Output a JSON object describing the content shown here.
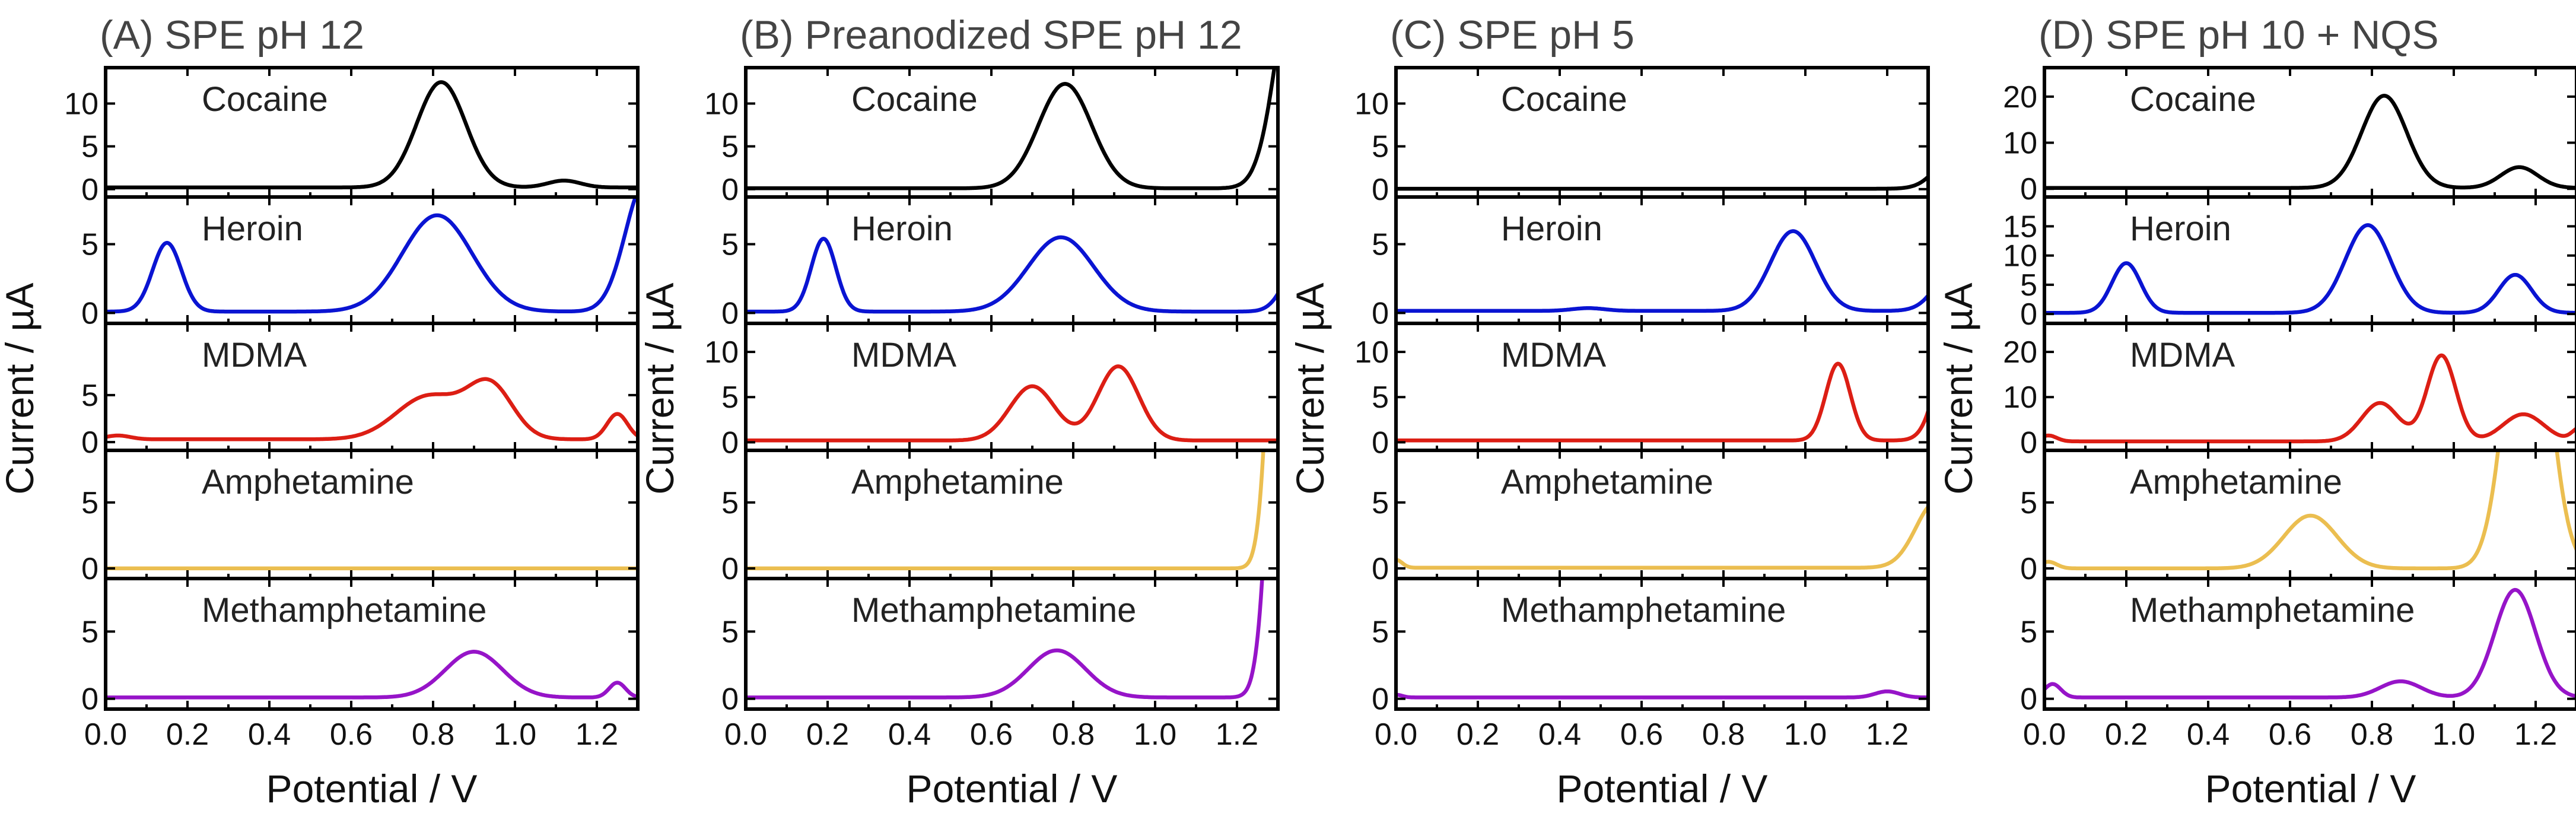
{
  "chart_data": {
    "type": "line",
    "xlabel": "Potential / V",
    "ylabel": "Current / µA",
    "xlim": [
      0,
      1.3
    ],
    "x_ticks": [
      0.0,
      0.2,
      0.4,
      0.6,
      0.8,
      1.0,
      1.2
    ],
    "x_tick_labels": [
      "0.0",
      "0.2",
      "0.4",
      "0.6",
      "0.8",
      "1.0",
      "1.2"
    ],
    "analytes": [
      "Cocaine",
      "Heroin",
      "MDMA",
      "Amphetamine",
      "Methamphetamine"
    ],
    "colors": {
      "Cocaine": "#000000",
      "Heroin": "#0a14d2",
      "MDMA": "#dc1e14",
      "Amphetamine": "#ebbe50",
      "Methamphetamine": "#9614c8"
    },
    "panels": [
      {
        "title": "(A) SPE pH 12",
        "subplots": [
          {
            "analyte": "Cocaine",
            "ylim": [
              -0.5,
              13.5
            ],
            "y_ticks": [
              0,
              5,
              10
            ],
            "baseline": 0.2,
            "peaks": [
              {
                "x": 0.82,
                "h": 12.3,
                "w": 0.06
              },
              {
                "x": 1.12,
                "h": 0.8,
                "w": 0.04
              }
            ]
          },
          {
            "analyte": "Heroin",
            "ylim": [
              -0.5,
              8.0
            ],
            "y_ticks": [
              0,
              5
            ],
            "baseline": 0.1,
            "peaks": [
              {
                "x": 0.15,
                "h": 5.0,
                "w": 0.035
              },
              {
                "x": 0.81,
                "h": 7.0,
                "w": 0.085
              },
              {
                "x": 1.32,
                "h": 9.5,
                "w": 0.05
              }
            ]
          },
          {
            "analyte": "MDMA",
            "ylim": [
              -0.5,
              12.0
            ],
            "y_ticks": [
              0,
              5
            ],
            "baseline": 0.3,
            "peaks": [
              {
                "x": 0.03,
                "h": 0.4,
                "w": 0.03
              },
              {
                "x": 0.79,
                "h": 4.6,
                "w": 0.08
              },
              {
                "x": 0.94,
                "h": 5.5,
                "w": 0.055
              },
              {
                "x": 1.25,
                "h": 2.7,
                "w": 0.025
              }
            ]
          },
          {
            "analyte": "Amphetamine",
            "ylim": [
              -0.5,
              8.5
            ],
            "y_ticks": [
              0,
              5
            ],
            "baseline": 0.0,
            "peaks": []
          },
          {
            "analyte": "Methamphetamine",
            "ylim": [
              -0.5,
              8.5
            ],
            "y_ticks": [
              0,
              5
            ],
            "baseline": 0.1,
            "peaks": [
              {
                "x": 0.9,
                "h": 3.4,
                "w": 0.07
              },
              {
                "x": 1.25,
                "h": 1.1,
                "w": 0.02
              }
            ]
          }
        ]
      },
      {
        "title": "(B) Preanodized SPE pH 12",
        "subplots": [
          {
            "analyte": "Cocaine",
            "ylim": [
              -0.5,
              13.5
            ],
            "y_ticks": [
              0,
              5,
              10
            ],
            "baseline": 0.1,
            "peaks": [
              {
                "x": 0.78,
                "h": 12.2,
                "w": 0.065
              },
              {
                "x": 1.35,
                "h": 28.0,
                "w": 0.05
              }
            ]
          },
          {
            "analyte": "Heroin",
            "ylim": [
              -0.5,
              8.0
            ],
            "y_ticks": [
              0,
              5
            ],
            "baseline": 0.1,
            "peaks": [
              {
                "x": 0.19,
                "h": 5.3,
                "w": 0.03
              },
              {
                "x": 0.77,
                "h": 5.4,
                "w": 0.08
              },
              {
                "x": 1.36,
                "h": 4.0,
                "w": 0.04
              }
            ]
          },
          {
            "analyte": "MDMA",
            "ylim": [
              -0.5,
              12.5
            ],
            "y_ticks": [
              0,
              5,
              10
            ],
            "baseline": 0.2,
            "peaks": [
              {
                "x": 0.7,
                "h": 6.0,
                "w": 0.055
              },
              {
                "x": 0.91,
                "h": 8.2,
                "w": 0.05
              }
            ]
          },
          {
            "analyte": "Amphetamine",
            "ylim": [
              -0.5,
              8.5
            ],
            "y_ticks": [
              0,
              5
            ],
            "baseline": 0.0,
            "peaks": [
              {
                "x": 1.32,
                "h": 50.0,
                "w": 0.03
              }
            ]
          },
          {
            "analyte": "Methamphetamine",
            "ylim": [
              -0.5,
              8.5
            ],
            "y_ticks": [
              0,
              5
            ],
            "baseline": 0.1,
            "peaks": [
              {
                "x": 0.76,
                "h": 3.5,
                "w": 0.07
              },
              {
                "x": 1.33,
                "h": 60.0,
                "w": 0.035
              }
            ]
          }
        ]
      },
      {
        "title": "(C)  SPE pH 5",
        "subplots": [
          {
            "analyte": "Cocaine",
            "ylim": [
              -0.5,
              13.5
            ],
            "y_ticks": [
              0,
              5,
              10
            ],
            "baseline": 0.05,
            "peaks": [
              {
                "x": 1.38,
                "h": 5.0,
                "w": 0.05
              }
            ]
          },
          {
            "analyte": "Heroin",
            "ylim": [
              -0.5,
              8.0
            ],
            "y_ticks": [
              0,
              5
            ],
            "baseline": 0.15,
            "peaks": [
              {
                "x": 0.47,
                "h": 0.2,
                "w": 0.04
              },
              {
                "x": 0.97,
                "h": 5.8,
                "w": 0.055
              },
              {
                "x": 1.38,
                "h": 4.0,
                "w": 0.05
              }
            ]
          },
          {
            "analyte": "MDMA",
            "ylim": [
              -0.5,
              12.5
            ],
            "y_ticks": [
              0,
              5,
              10
            ],
            "baseline": 0.2,
            "peaks": [
              {
                "x": 1.08,
                "h": 8.5,
                "w": 0.03
              },
              {
                "x": 1.37,
                "h": 15.0,
                "w": 0.04
              }
            ]
          },
          {
            "analyte": "Amphetamine",
            "ylim": [
              -0.5,
              8.5
            ],
            "y_ticks": [
              0,
              5
            ],
            "baseline": 0.05,
            "peaks": [
              {
                "x": 0.0,
                "h": 0.6,
                "w": 0.015
              },
              {
                "x": 1.32,
                "h": 5.0,
                "w": 0.05
              }
            ]
          },
          {
            "analyte": "Methamphetamine",
            "ylim": [
              -0.5,
              8.5
            ],
            "y_ticks": [
              0,
              5
            ],
            "baseline": 0.1,
            "peaks": [
              {
                "x": 0.0,
                "h": 0.2,
                "w": 0.015
              },
              {
                "x": 1.2,
                "h": 0.45,
                "w": 0.03
              }
            ]
          }
        ]
      },
      {
        "title": "(D) SPE pH 10 + NQS",
        "subplots": [
          {
            "analyte": "Cocaine",
            "ylim": [
              -1.0,
              25.0
            ],
            "y_ticks": [
              0,
              10,
              20
            ],
            "baseline": 0.2,
            "peaks": [
              {
                "x": 0.83,
                "h": 20.0,
                "w": 0.055
              },
              {
                "x": 1.16,
                "h": 4.5,
                "w": 0.045
              }
            ]
          },
          {
            "analyte": "Heroin",
            "ylim": [
              -1.0,
              19.0
            ],
            "y_ticks": [
              0,
              5,
              10,
              15
            ],
            "baseline": 0.2,
            "peaks": [
              {
                "x": 0.2,
                "h": 8.5,
                "w": 0.035
              },
              {
                "x": 0.79,
                "h": 15.0,
                "w": 0.055
              },
              {
                "x": 1.15,
                "h": 6.5,
                "w": 0.04
              }
            ]
          },
          {
            "analyte": "MDMA",
            "ylim": [
              -1.0,
              25.0
            ],
            "y_ticks": [
              0,
              10,
              20
            ],
            "baseline": 0.2,
            "peaks": [
              {
                "x": 0.01,
                "h": 1.3,
                "w": 0.02
              },
              {
                "x": 0.82,
                "h": 8.5,
                "w": 0.045
              },
              {
                "x": 0.97,
                "h": 19.0,
                "w": 0.035
              },
              {
                "x": 1.17,
                "h": 6.0,
                "w": 0.05
              },
              {
                "x": 1.31,
                "h": 3.0,
                "w": 0.02
              }
            ]
          },
          {
            "analyte": "Amphetamine",
            "ylim": [
              -0.5,
              8.5
            ],
            "y_ticks": [
              0,
              5
            ],
            "baseline": 0.0,
            "peaks": [
              {
                "x": 0.01,
                "h": 0.5,
                "w": 0.02
              },
              {
                "x": 0.65,
                "h": 4.0,
                "w": 0.065
              },
              {
                "x": 1.18,
                "h": 25.0,
                "w": 0.05
              }
            ]
          },
          {
            "analyte": "Methamphetamine",
            "ylim": [
              -0.5,
              8.5
            ],
            "y_ticks": [
              0,
              5
            ],
            "baseline": 0.1,
            "peaks": [
              {
                "x": 0.02,
                "h": 1.0,
                "w": 0.02
              },
              {
                "x": 0.87,
                "h": 1.2,
                "w": 0.05
              },
              {
                "x": 1.15,
                "h": 8.0,
                "w": 0.05
              }
            ]
          }
        ]
      }
    ]
  }
}
